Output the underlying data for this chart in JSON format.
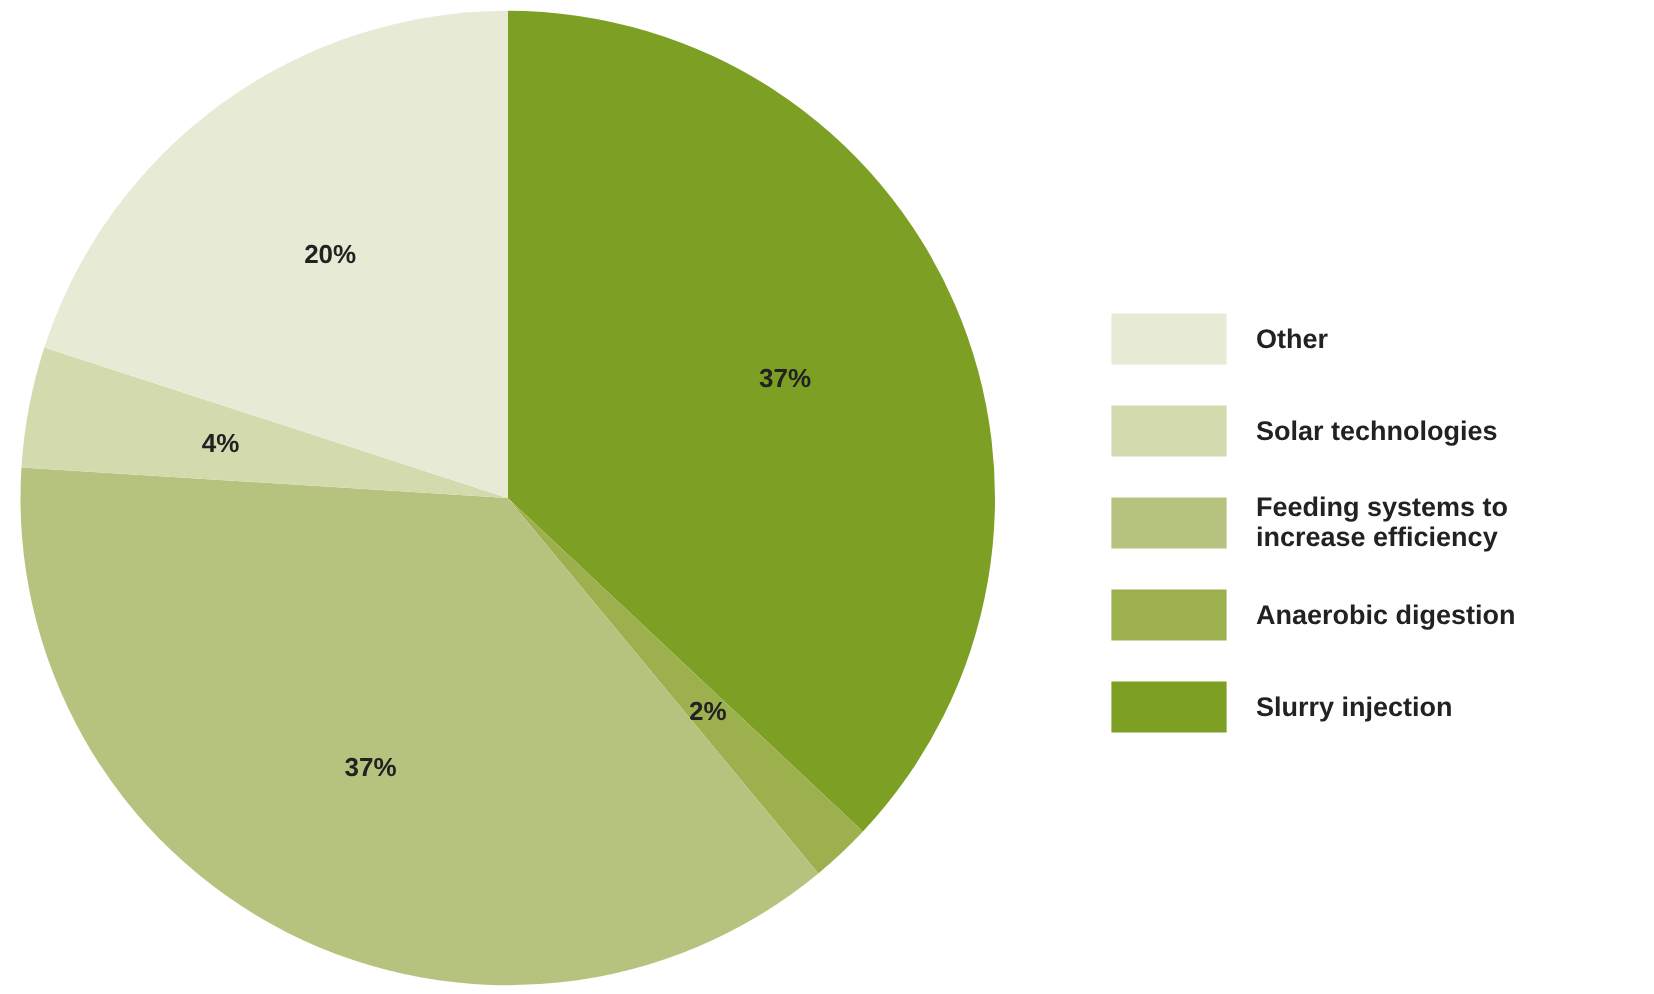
{
  "chart_data": {
    "type": "pie",
    "categories": [
      "Slurry injection",
      "Anaerobic digestion",
      "Feeding systems to increase efficiency",
      "Solar technologies",
      "Other"
    ],
    "values": [
      37,
      2,
      37,
      4,
      20
    ],
    "colors": [
      "#7da024",
      "#9cb04d",
      "#b6c37f",
      "#d3dbae",
      "#e7ebd6"
    ],
    "value_labels": [
      "37%",
      "2%",
      "37%",
      "4%",
      "20%"
    ],
    "legend": "right"
  }
}
